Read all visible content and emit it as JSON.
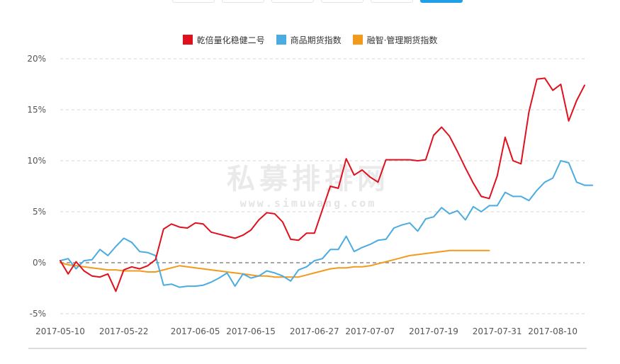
{
  "toolbar": {
    "tabs": [
      {
        "label": "",
        "active": false
      },
      {
        "label": "",
        "active": false
      },
      {
        "label": "",
        "active": false
      },
      {
        "label": "",
        "active": false
      },
      {
        "label": "",
        "active": false
      },
      {
        "label": "",
        "active": true
      }
    ]
  },
  "watermark": {
    "main": "私募排排网",
    "url": "www.simuwang.com"
  },
  "chart_data": {
    "type": "line",
    "title": "",
    "xlabel": "",
    "ylabel": "",
    "ylim": [
      -5,
      20
    ],
    "yticks": [
      "20%",
      "15%",
      "10%",
      "5%",
      "0%",
      "-5%"
    ],
    "ytick_values": [
      20,
      15,
      10,
      5,
      0,
      -5
    ],
    "xtick_labels": [
      "2017-05-10",
      "2017-05-22",
      "2017-06-05",
      "2017-06-15",
      "2017-06-27",
      "2017-07-07",
      "2017-07-19",
      "2017-07-31",
      "2017-08-10"
    ],
    "xtick_indices": [
      0,
      8,
      17,
      24,
      32,
      39,
      47,
      55,
      62
    ],
    "grid": "horizontal dashed",
    "legend_position": "top-center",
    "baseline": 0,
    "series": [
      {
        "name": "乾倍量化稳健二号",
        "color": "#e0101e",
        "values": [
          0.2,
          -1.1,
          0.1,
          -0.8,
          -1.3,
          -1.4,
          -1.1,
          -2.8,
          -0.7,
          -0.4,
          -0.6,
          -0.3,
          0.3,
          3.3,
          3.8,
          3.5,
          3.4,
          3.9,
          3.8,
          3.0,
          2.8,
          2.6,
          2.4,
          2.7,
          3.2,
          4.2,
          4.9,
          4.8,
          4.0,
          2.3,
          2.2,
          2.9,
          2.9,
          5.2,
          7.5,
          7.3,
          10.2,
          8.6,
          9.1,
          8.4,
          7.9,
          10.1,
          10.1,
          10.1,
          10.1,
          10.0,
          10.1,
          12.5,
          13.3,
          12.4,
          10.9,
          9.3,
          7.8,
          6.5,
          6.3,
          8.5,
          12.3,
          10.0,
          9.7,
          14.8,
          18.0,
          18.1,
          16.9,
          17.5,
          13.9,
          15.9,
          17.4
        ]
      },
      {
        "name": "商品期货指数",
        "color": "#4aace0",
        "values": [
          0.2,
          0.4,
          -0.6,
          0.2,
          0.3,
          1.3,
          0.7,
          1.6,
          2.4,
          2.0,
          1.1,
          1.0,
          0.7,
          -2.2,
          -2.1,
          -2.4,
          -2.3,
          -2.3,
          -2.2,
          -1.9,
          -1.5,
          -1.0,
          -2.3,
          -1.1,
          -1.5,
          -1.3,
          -0.8,
          -1.0,
          -1.3,
          -1.8,
          -0.7,
          -0.4,
          0.2,
          0.4,
          1.3,
          1.3,
          2.6,
          1.1,
          1.5,
          1.8,
          2.2,
          2.3,
          3.4,
          3.7,
          3.9,
          3.1,
          4.3,
          4.5,
          5.4,
          4.8,
          5.1,
          4.2,
          5.5,
          5.0,
          5.6,
          5.6,
          6.9,
          6.5,
          6.5,
          6.1,
          7.1,
          7.9,
          8.3,
          10.0,
          9.8,
          7.9,
          7.6,
          7.6
        ]
      },
      {
        "name": "融智·管理期货指数",
        "color": "#f39a1d",
        "values": [
          0.0,
          -0.2,
          -0.3,
          -0.4,
          -0.5,
          -0.6,
          -0.7,
          -0.7,
          -0.8,
          -0.8,
          -0.8,
          -0.9,
          -0.9,
          -0.7,
          -0.5,
          -0.3,
          -0.4,
          -0.5,
          -0.6,
          -0.7,
          -0.8,
          -0.9,
          -1.0,
          -1.1,
          -1.2,
          -1.3,
          -1.3,
          -1.4,
          -1.4,
          -1.4,
          -1.4,
          -1.2,
          -1.0,
          -0.8,
          -0.6,
          -0.5,
          -0.5,
          -0.4,
          -0.4,
          -0.3,
          -0.1,
          0.1,
          0.3,
          0.5,
          0.7,
          0.8,
          0.9,
          1.0,
          1.1,
          1.2,
          1.2,
          1.2,
          1.2,
          1.2,
          1.2
        ]
      }
    ]
  }
}
